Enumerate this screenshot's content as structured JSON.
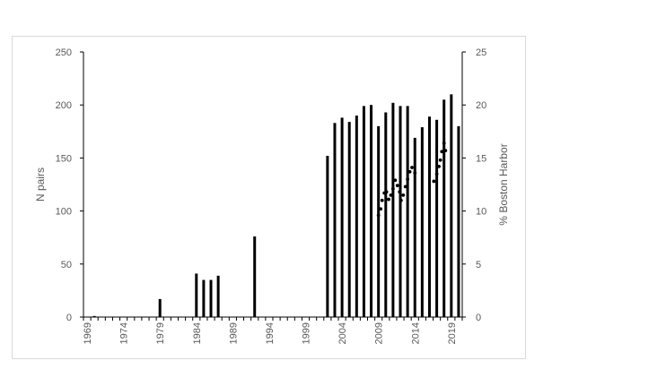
{
  "chart_data": {
    "type": "bar",
    "x": [
      1969,
      1970,
      1971,
      1972,
      1973,
      1974,
      1975,
      1976,
      1977,
      1978,
      1979,
      1980,
      1981,
      1982,
      1983,
      1984,
      1985,
      1986,
      1987,
      1988,
      1989,
      1990,
      1991,
      1992,
      1993,
      1994,
      1995,
      1996,
      1997,
      1998,
      1999,
      2000,
      2001,
      2002,
      2003,
      2004,
      2005,
      2006,
      2007,
      2008,
      2009,
      2010,
      2011,
      2012,
      2013,
      2014,
      2015,
      2016,
      2017,
      2018,
      2019,
      2020
    ],
    "series": [
      {
        "axis": "left",
        "type": "bar",
        "values": [
          0,
          1,
          0,
          0,
          0,
          0,
          0,
          0,
          0,
          0,
          17,
          0,
          0,
          0,
          0,
          41,
          35,
          35,
          39,
          0,
          0,
          0,
          0,
          76,
          0,
          0,
          0,
          0,
          0,
          0,
          0,
          0,
          0,
          152,
          183,
          188,
          184,
          190,
          199,
          200,
          180,
          193,
          202,
          199,
          199,
          169,
          179,
          189,
          186,
          205,
          210,
          180
        ]
      },
      {
        "axis": "right",
        "type": "scatter",
        "points": [
          [
            2009,
            9.6
          ],
          [
            2009.3,
            10.2
          ],
          [
            2009.5,
            11
          ],
          [
            2009.8,
            11.7
          ],
          [
            2010.1,
            11.8
          ],
          [
            2010.4,
            11.1
          ],
          [
            2010.7,
            11.5
          ],
          [
            2011,
            12.1
          ],
          [
            2011.3,
            12.9
          ],
          [
            2011.6,
            12.4
          ],
          [
            2011.9,
            11.8
          ],
          [
            2012.1,
            11
          ],
          [
            2012.4,
            11.5
          ],
          [
            2012.7,
            12.3
          ],
          [
            2013,
            13
          ],
          [
            2013.3,
            13.7
          ],
          [
            2013.6,
            14.1
          ],
          [
            2014,
            13.6
          ],
          [
            2016.6,
            12.8
          ],
          [
            2017,
            13.5
          ],
          [
            2017.3,
            14.2
          ],
          [
            2017.5,
            14.8
          ],
          [
            2017.7,
            15.6
          ],
          [
            2018,
            16.4
          ],
          [
            2018.2,
            15.7
          ]
        ]
      }
    ],
    "y_left_label": "N pairs",
    "y_right_label": "% Boston Harbor",
    "y_left_lim": [
      0,
      250
    ],
    "y_left_ticks": [
      0,
      50,
      100,
      150,
      200,
      250
    ],
    "y_right_lim": [
      0,
      25
    ],
    "y_right_ticks": [
      0,
      5,
      10,
      15,
      20,
      25
    ],
    "x_tick_labels": [
      "1969",
      "1974",
      "1979",
      "1984",
      "1989",
      "1994",
      "1999",
      "2004",
      "2009",
      "2014",
      "2019"
    ],
    "grid": false,
    "colors": {
      "bars": "#000000",
      "points": "#000000",
      "axis": "#000000",
      "text": "#595959",
      "frame": "#d9d9d9"
    }
  }
}
